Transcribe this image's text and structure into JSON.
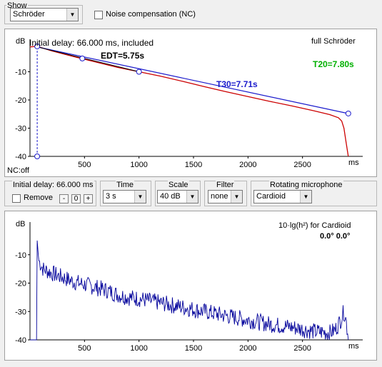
{
  "toolbar": {
    "show_label": "Show",
    "show_value": "Schröder",
    "noise_label": "Noise compensation (NC)"
  },
  "top_plot": {
    "y_unit": "dB",
    "info": "Initial delay: 66.000 ms, included",
    "mode": "full Schröder",
    "edt": "EDT=5.75s",
    "t30": "T30=7.71s",
    "t20": "T20=7.80s",
    "nc": "NC:off",
    "x_unit": "ms",
    "colors": {
      "curve": "#cc0000",
      "fit": "#1a1acc",
      "edt": "#000000",
      "t20": "#00b000"
    }
  },
  "controls": {
    "delay_label": "Initial delay: 66.000 ms",
    "remove_label": "Remove",
    "minus": "-",
    "zero": "0",
    "plus": "+",
    "time_label": "Time",
    "time_value": "3 s",
    "scale_label": "Scale",
    "scale_value": "40 dB",
    "filter_label": "Filter",
    "filter_value": "none",
    "mic_label": "Rotating microphone",
    "mic_value": "Cardioid"
  },
  "bottom_plot": {
    "y_unit": "dB",
    "title": "10·lg(h²) for Cardioid",
    "angle": "0.0° 0.0°",
    "x_unit": "ms",
    "colors": {
      "curve": "#00009a"
    }
  },
  "chart_data": [
    {
      "type": "line",
      "title": "full Schröder",
      "ylabel": "dB",
      "xlabel": "ms",
      "xlim": [
        0,
        3000
      ],
      "ylim": [
        -40,
        0
      ],
      "x_ticks": [
        500,
        1000,
        1500,
        2000,
        2500
      ],
      "y_ticks": [
        -10,
        -20,
        -30,
        -40
      ],
      "grid": false,
      "series": [
        {
          "name": "Schröder",
          "x": [
            0,
            66,
            200,
            400,
            600,
            800,
            1000,
            1200,
            1400,
            1600,
            1800,
            2000,
            2200,
            2400,
            2600,
            2750,
            2830,
            2860,
            2880,
            2900,
            2920
          ],
          "y": [
            -1.2,
            -1.0,
            -2.6,
            -4.6,
            -6.5,
            -8.4,
            -10.0,
            -11.6,
            -13.4,
            -15.3,
            -17.1,
            -18.8,
            -20.5,
            -22.1,
            -23.8,
            -25.2,
            -26.3,
            -27.5,
            -30.0,
            -35.0,
            -40.0
          ]
        },
        {
          "name": "T30",
          "x": [
            66,
            2920
          ],
          "y": [
            -1.2,
            -24.8
          ]
        },
        {
          "name": "EDT",
          "x": [
            66,
            1000
          ],
          "y": [
            -1.2,
            -10.0
          ]
        },
        {
          "name": "Initial delay",
          "x": [
            66,
            66
          ],
          "y": [
            0,
            -40
          ]
        }
      ],
      "markers": [
        {
          "x": 66,
          "y": -1.0
        },
        {
          "x": 480,
          "y": -5.3
        },
        {
          "x": 1000,
          "y": -10.0
        },
        {
          "x": 2920,
          "y": -24.8
        },
        {
          "x": 66,
          "y": -40.0
        }
      ]
    },
    {
      "type": "line",
      "title": "10·lg(h²) for Cardioid",
      "ylabel": "dB",
      "xlabel": "ms",
      "xlim": [
        0,
        3000
      ],
      "ylim": [
        -40,
        0
      ],
      "x_ticks": [
        500,
        1000,
        1500,
        2000,
        2500
      ],
      "y_ticks": [
        -10,
        -20,
        -30,
        -40
      ],
      "grid": false,
      "series": [
        {
          "name": "10·lg(h²)",
          "x": [
            0,
            50,
            66,
            80,
            120,
            200,
            300,
            400,
            500,
            600,
            700,
            800,
            900,
            1000,
            1200,
            1400,
            1600,
            1800,
            2000,
            2200,
            2400,
            2600,
            2750,
            2800,
            2850,
            2880,
            2900,
            2920
          ],
          "y": [
            -40,
            -40,
            -5,
            -12,
            -15,
            -16.5,
            -18,
            -19.5,
            -20.5,
            -21.5,
            -22.5,
            -24,
            -25,
            -25.5,
            -27,
            -28.5,
            -30,
            -31.5,
            -33,
            -34.5,
            -35.5,
            -37,
            -37.5,
            -36.5,
            -33,
            -30,
            -33,
            -40
          ]
        }
      ]
    }
  ]
}
